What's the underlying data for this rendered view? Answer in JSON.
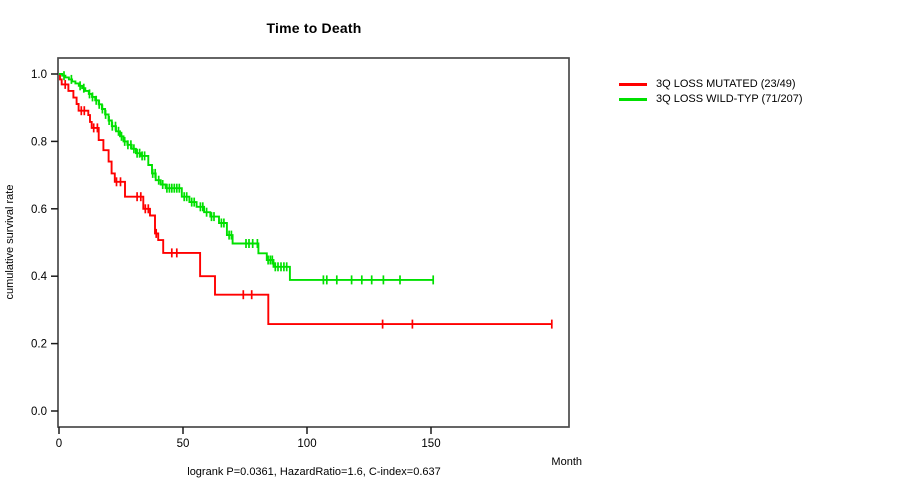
{
  "chart_data": {
    "type": "line",
    "subtype": "kaplan-meier-step",
    "title": "Time to Death",
    "xlabel": "Month",
    "ylabel": "cumulative survival rate",
    "annotation": "logrank P=0.0361, HazardRatio=1.6, C-index=0.637",
    "xlim": [
      0,
      206
    ],
    "ylim": [
      0,
      1
    ],
    "x_ticks": [
      0,
      50,
      100,
      150
    ],
    "y_ticks": [
      0.0,
      0.2,
      0.4,
      0.6,
      0.8,
      1.0
    ],
    "grid": false,
    "legend_position": "right",
    "box_color": "#4a4a4a",
    "series": [
      {
        "name": "3Q LOSS MUTATED (23/49)",
        "key": "mutated",
        "color": "#ff0000",
        "events": "23/49",
        "steps": [
          [
            0,
            1.0
          ],
          [
            0.4,
            0.984
          ],
          [
            1.1,
            0.969
          ],
          [
            3.8,
            0.95
          ],
          [
            5.8,
            0.93
          ],
          [
            7.1,
            0.911
          ],
          [
            7.9,
            0.891
          ],
          [
            11.8,
            0.878
          ],
          [
            12.5,
            0.858
          ],
          [
            13.2,
            0.84
          ],
          [
            16,
            0.804
          ],
          [
            17.9,
            0.774
          ],
          [
            20,
            0.74
          ],
          [
            21.2,
            0.705
          ],
          [
            22.5,
            0.68
          ],
          [
            26.6,
            0.636
          ],
          [
            34,
            0.6
          ],
          [
            36.7,
            0.58
          ],
          [
            38.7,
            0.527
          ],
          [
            40,
            0.507
          ],
          [
            42,
            0.469
          ],
          [
            56.9,
            0.4
          ],
          [
            62.9,
            0.345
          ],
          [
            84.4,
            0.258
          ],
          [
            199,
            0.258
          ]
        ],
        "censor_times": [
          2.5,
          9,
          10.2,
          14,
          15.5,
          23.2,
          24.8,
          31.5,
          33,
          34.8,
          36,
          39.2,
          45.5,
          47.5,
          74.3,
          77.7,
          130.5,
          142.5,
          198.7
        ]
      },
      {
        "name": "3Q LOSS WILD-TYP (71/207)",
        "key": "wild-typ",
        "color": "#00e000",
        "events": "71/207",
        "steps": [
          [
            0,
            1.0
          ],
          [
            1.3,
            0.995
          ],
          [
            2.6,
            0.99
          ],
          [
            4,
            0.984
          ],
          [
            5.3,
            0.978
          ],
          [
            6.6,
            0.972
          ],
          [
            8,
            0.965
          ],
          [
            9.3,
            0.958
          ],
          [
            10.6,
            0.95
          ],
          [
            12,
            0.941
          ],
          [
            13.3,
            0.932
          ],
          [
            14.6,
            0.922
          ],
          [
            16,
            0.91
          ],
          [
            17.3,
            0.896
          ],
          [
            18.6,
            0.88
          ],
          [
            20,
            0.862
          ],
          [
            21.3,
            0.845
          ],
          [
            23,
            0.83
          ],
          [
            24.6,
            0.815
          ],
          [
            26,
            0.8
          ],
          [
            27.6,
            0.79
          ],
          [
            29.3,
            0.778
          ],
          [
            31,
            0.765
          ],
          [
            33,
            0.757
          ],
          [
            36,
            0.73
          ],
          [
            37.5,
            0.705
          ],
          [
            39,
            0.685
          ],
          [
            41,
            0.672
          ],
          [
            43,
            0.661
          ],
          [
            49.5,
            0.636
          ],
          [
            52.6,
            0.62
          ],
          [
            55.5,
            0.606
          ],
          [
            58.5,
            0.59
          ],
          [
            61,
            0.577
          ],
          [
            64.5,
            0.558
          ],
          [
            67.7,
            0.522
          ],
          [
            70,
            0.497
          ],
          [
            80.4,
            0.468
          ],
          [
            83.8,
            0.448
          ],
          [
            86.5,
            0.428
          ],
          [
            93.1,
            0.389
          ],
          [
            151,
            0.389
          ]
        ],
        "censor_times": [
          2,
          5,
          8.5,
          10,
          12.3,
          13.5,
          15,
          16.2,
          17.5,
          18.8,
          20.2,
          21.5,
          22.8,
          24,
          25.2,
          26.5,
          27.8,
          29,
          30.2,
          31.5,
          32.5,
          33.5,
          34.5,
          37.8,
          38.8,
          40.2,
          41.8,
          43.5,
          44.5,
          45.5,
          46.5,
          47.5,
          48.5,
          50.5,
          51.5,
          53.5,
          54.5,
          57,
          58,
          59.5,
          61.5,
          62.5,
          65.5,
          66.5,
          68.6,
          69.5,
          75.4,
          76.6,
          78.1,
          80,
          84.3,
          85.2,
          86,
          87.2,
          88.3,
          89.5,
          90.7,
          91.8,
          106.6,
          108,
          112,
          118,
          122.1,
          126.1,
          130.8,
          137.5,
          150.9
        ]
      }
    ]
  }
}
